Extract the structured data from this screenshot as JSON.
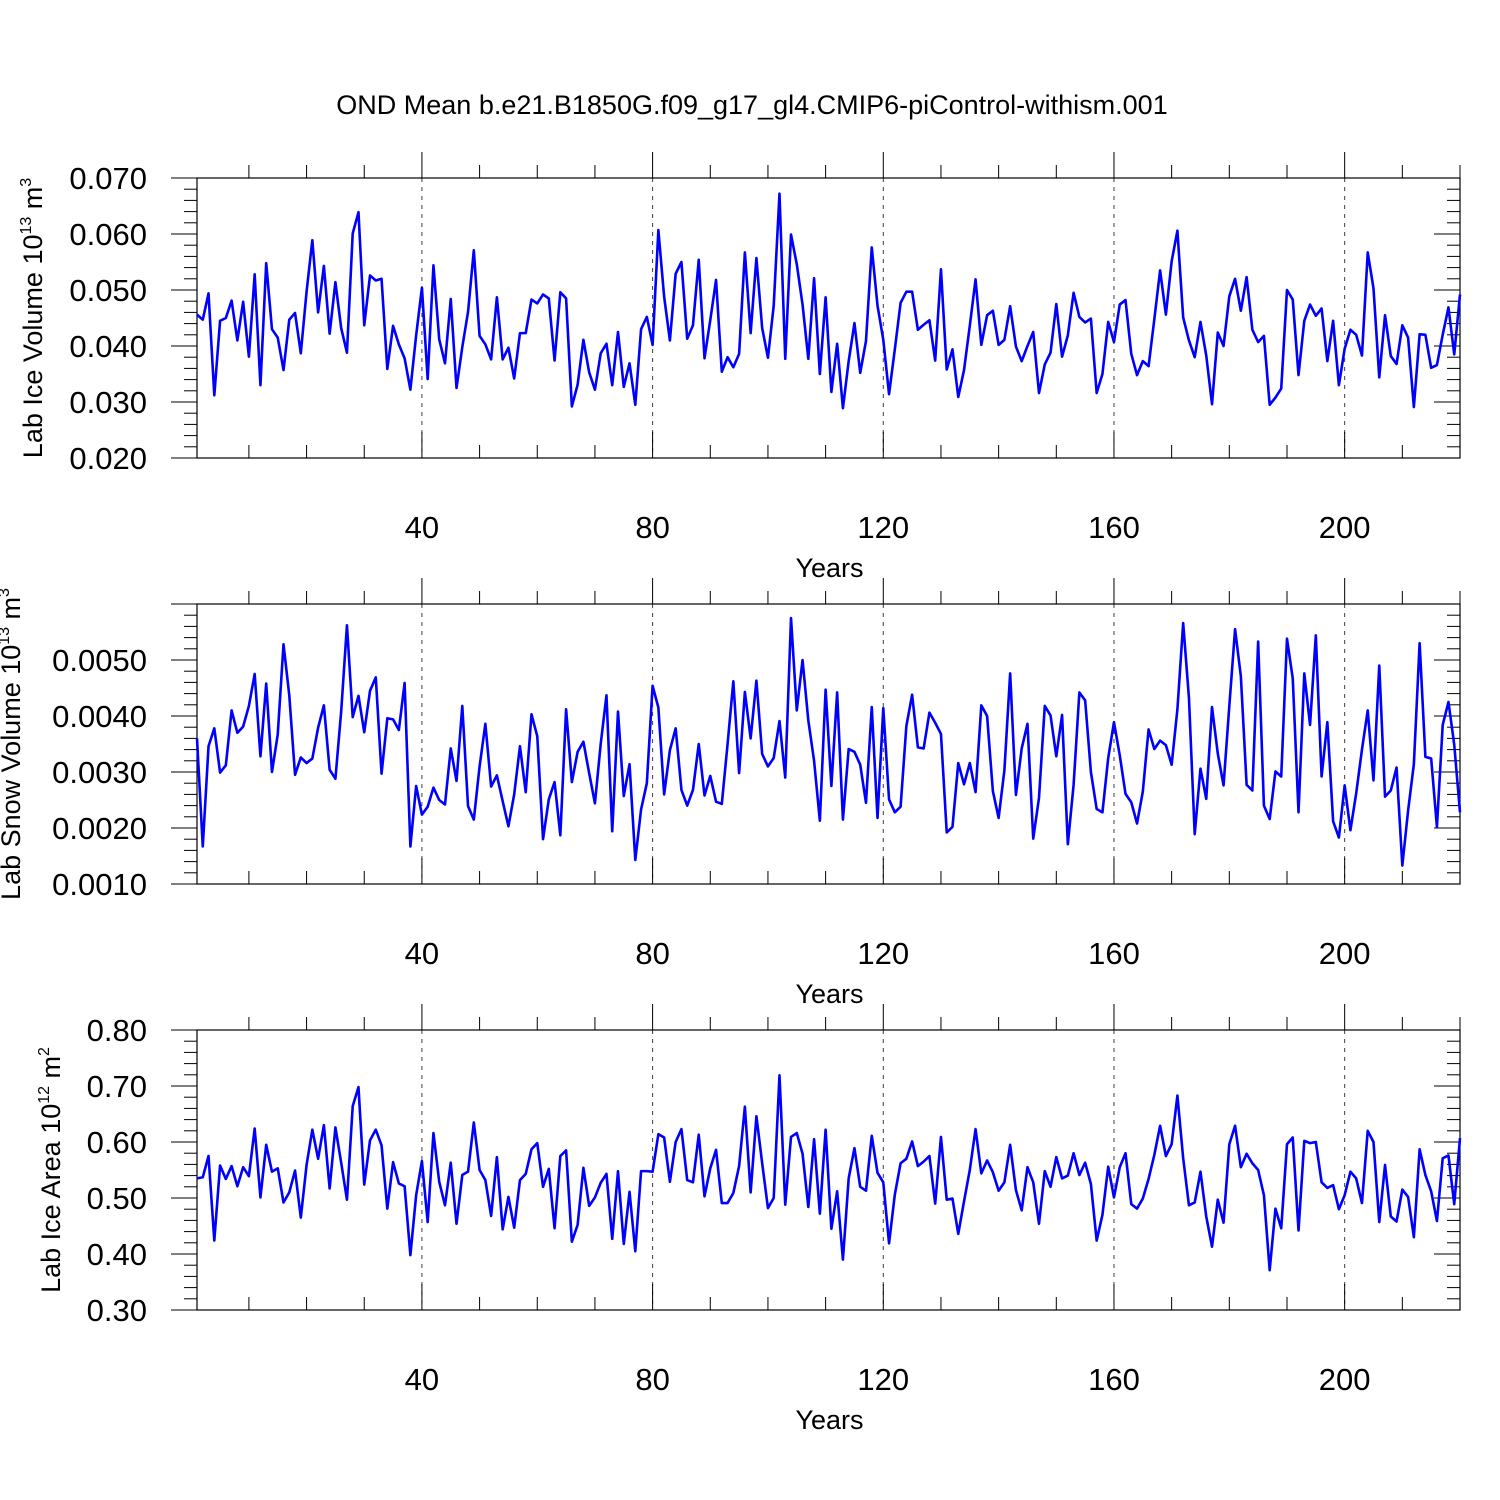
{
  "title": "OND Mean b.e21.B1850G.f09_g17_gl4.CMIP6-piControl-withism.001",
  "colors": {
    "series": "#0000ff",
    "axes": "#000000"
  },
  "chart_data": [
    {
      "type": "line",
      "id": "ice-volume",
      "ylabel": {
        "text": "Lab Ice Volume 10",
        "sup1": "13",
        "mid": " m",
        "sup2": "3"
      },
      "xlabel": "Years",
      "xlim": [
        1,
        220
      ],
      "ylim": [
        0.02,
        0.07
      ],
      "xticks": [
        40,
        80,
        120,
        160,
        200
      ],
      "xtick_labels": [
        "40",
        "80",
        "120",
        "160",
        "200"
      ],
      "yticks": [
        0.02,
        0.03,
        0.04,
        0.05,
        0.06,
        0.07
      ],
      "ytick_labels": [
        "0.020",
        "0.030",
        "0.040",
        "0.050",
        "0.060",
        "0.070"
      ],
      "grid": "x-dashed",
      "series": [
        {
          "values": [
            0.0456,
            0.0447,
            0.0494,
            0.0312,
            0.0445,
            0.045,
            0.0481,
            0.041,
            0.0479,
            0.0381,
            0.0528,
            0.033,
            0.0548,
            0.043,
            0.0415,
            0.0357,
            0.0447,
            0.0459,
            0.0387,
            0.0497,
            0.0589,
            0.046,
            0.0543,
            0.0422,
            0.0514,
            0.0432,
            0.0388,
            0.0601,
            0.0639,
            0.0437,
            0.0526,
            0.0517,
            0.052,
            0.0359,
            0.0436,
            0.0403,
            0.0378,
            0.0322,
            0.0419,
            0.0504,
            0.0341,
            0.0544,
            0.0412,
            0.0369,
            0.0484,
            0.0325,
            0.0398,
            0.0461,
            0.0571,
            0.0418,
            0.0403,
            0.0376,
            0.0487,
            0.0376,
            0.0397,
            0.0342,
            0.0423,
            0.0423,
            0.0483,
            0.0476,
            0.0492,
            0.0485,
            0.0374,
            0.0496,
            0.0485,
            0.0292,
            0.0331,
            0.0411,
            0.0353,
            0.0322,
            0.0387,
            0.0404,
            0.033,
            0.0425,
            0.0327,
            0.0369,
            0.0295,
            0.043,
            0.0452,
            0.0402,
            0.0607,
            0.0488,
            0.041,
            0.0529,
            0.055,
            0.0413,
            0.0437,
            0.0554,
            0.0378,
            0.0446,
            0.0518,
            0.0354,
            0.038,
            0.0362,
            0.0386,
            0.0567,
            0.0423,
            0.0557,
            0.0432,
            0.0379,
            0.0472,
            0.0672,
            0.0377,
            0.0599,
            0.0546,
            0.0474,
            0.0377,
            0.0521,
            0.035,
            0.0487,
            0.0318,
            0.0404,
            0.0289,
            0.0373,
            0.0441,
            0.0352,
            0.0409,
            0.0576,
            0.0472,
            0.0411,
            0.0314,
            0.0394,
            0.0477,
            0.0497,
            0.0497,
            0.0429,
            0.0438,
            0.0446,
            0.0374,
            0.0537,
            0.0358,
            0.0394,
            0.0309,
            0.0357,
            0.0436,
            0.0519,
            0.0402,
            0.0455,
            0.0463,
            0.0402,
            0.0411,
            0.0471,
            0.0399,
            0.0373,
            0.04,
            0.0425,
            0.0316,
            0.0367,
            0.0388,
            0.0475,
            0.0381,
            0.0419,
            0.0495,
            0.0452,
            0.0442,
            0.0449,
            0.0316,
            0.035,
            0.0443,
            0.0407,
            0.0474,
            0.0482,
            0.0386,
            0.0348,
            0.0373,
            0.0364,
            0.0448,
            0.0535,
            0.0456,
            0.0551,
            0.0606,
            0.0451,
            0.041,
            0.038,
            0.0443,
            0.0383,
            0.0296,
            0.0424,
            0.04,
            0.0489,
            0.052,
            0.0463,
            0.0523,
            0.0429,
            0.0407,
            0.0418,
            0.0295,
            0.0308,
            0.0324,
            0.05,
            0.0483,
            0.0348,
            0.0445,
            0.0474,
            0.0454,
            0.0467,
            0.0373,
            0.0445,
            0.033,
            0.0395,
            0.0429,
            0.042,
            0.0383,
            0.0567,
            0.0503,
            0.0344,
            0.0455,
            0.0382,
            0.0368,
            0.0437,
            0.0415,
            0.0291,
            0.0421,
            0.042,
            0.0361,
            0.0366,
            0.042,
            0.0469,
            0.0385,
            0.0492
          ]
        }
      ]
    },
    {
      "type": "line",
      "id": "snow-volume",
      "ylabel": {
        "text": "Lab Snow Volume 10",
        "sup1": "13",
        "mid": " m",
        "sup2": "3"
      },
      "xlabel": "Years",
      "xlim": [
        1,
        220
      ],
      "ylim": [
        0.001,
        0.006
      ],
      "xticks": [
        40,
        80,
        120,
        160,
        200
      ],
      "xtick_labels": [
        "40",
        "80",
        "120",
        "160",
        "200"
      ],
      "yticks": [
        0.001,
        0.002,
        0.003,
        0.004,
        0.005
      ],
      "ytick_labels": [
        "0.0010",
        "0.0020",
        "0.0030",
        "0.0040",
        "0.0050"
      ],
      "grid": "x-dashed",
      "series": [
        {
          "values": [
            0.0036,
            0.00167,
            0.00346,
            0.00378,
            0.00299,
            0.00312,
            0.0041,
            0.0037,
            0.00381,
            0.00418,
            0.00475,
            0.00328,
            0.00458,
            0.003,
            0.00367,
            0.00528,
            0.00437,
            0.00295,
            0.00326,
            0.00316,
            0.00324,
            0.00379,
            0.00419,
            0.00304,
            0.00288,
            0.00408,
            0.00562,
            0.00398,
            0.00436,
            0.00371,
            0.00445,
            0.00469,
            0.00297,
            0.00396,
            0.00394,
            0.00375,
            0.00459,
            0.00167,
            0.00275,
            0.00224,
            0.00238,
            0.00272,
            0.0025,
            0.00242,
            0.00342,
            0.00284,
            0.00418,
            0.00239,
            0.00215,
            0.0031,
            0.00386,
            0.00274,
            0.00294,
            0.00248,
            0.00203,
            0.0026,
            0.00346,
            0.00264,
            0.00403,
            0.00364,
            0.0018,
            0.00251,
            0.00282,
            0.00187,
            0.00412,
            0.00282,
            0.00336,
            0.00354,
            0.00298,
            0.00244,
            0.0035,
            0.00437,
            0.00194,
            0.00408,
            0.00257,
            0.00314,
            0.00143,
            0.00233,
            0.0028,
            0.00454,
            0.00415,
            0.0026,
            0.00339,
            0.00378,
            0.00268,
            0.0024,
            0.00268,
            0.0035,
            0.00258,
            0.00293,
            0.00247,
            0.00243,
            0.0035,
            0.00462,
            0.00298,
            0.00443,
            0.0036,
            0.00463,
            0.00332,
            0.0031,
            0.00325,
            0.00391,
            0.0029,
            0.00575,
            0.0041,
            0.005,
            0.00392,
            0.0032,
            0.00213,
            0.00447,
            0.00275,
            0.00442,
            0.00215,
            0.00341,
            0.00336,
            0.00313,
            0.00245,
            0.00416,
            0.00218,
            0.00414,
            0.00251,
            0.00228,
            0.00238,
            0.00382,
            0.00438,
            0.00344,
            0.00342,
            0.00406,
            0.00388,
            0.00368,
            0.00192,
            0.00202,
            0.00316,
            0.00278,
            0.00316,
            0.00264,
            0.00419,
            0.004,
            0.00266,
            0.00218,
            0.00303,
            0.00476,
            0.00259,
            0.00342,
            0.00386,
            0.00181,
            0.00254,
            0.00418,
            0.00401,
            0.00328,
            0.00402,
            0.00171,
            0.00277,
            0.00442,
            0.00428,
            0.003,
            0.00234,
            0.00228,
            0.00325,
            0.00389,
            0.0033,
            0.00261,
            0.00246,
            0.00208,
            0.00265,
            0.00376,
            0.00341,
            0.00356,
            0.00348,
            0.00313,
            0.00412,
            0.00566,
            0.00432,
            0.00189,
            0.00306,
            0.00252,
            0.00416,
            0.00333,
            0.00276,
            0.00418,
            0.00555,
            0.00471,
            0.00277,
            0.00267,
            0.00533,
            0.0024,
            0.00216,
            0.00301,
            0.00292,
            0.00538,
            0.00467,
            0.00228,
            0.00476,
            0.00384,
            0.00544,
            0.00292,
            0.00389,
            0.00212,
            0.00183,
            0.00276,
            0.00196,
            0.00262,
            0.0034,
            0.0041,
            0.00285,
            0.0049,
            0.00256,
            0.00267,
            0.00308,
            0.00133,
            0.00231,
            0.00314,
            0.0053,
            0.00327,
            0.00324,
            0.00202,
            0.00384,
            0.00425,
            0.00349,
            0.00228
          ]
        }
      ]
    },
    {
      "type": "line",
      "id": "ice-area",
      "ylabel": {
        "text": "Lab Ice Area 10",
        "sup1": "12",
        "mid": " m",
        "sup2": "2"
      },
      "xlabel": "Years",
      "xlim": [
        1,
        220
      ],
      "ylim": [
        0.3,
        0.8
      ],
      "xticks": [
        40,
        80,
        120,
        160,
        200
      ],
      "xtick_labels": [
        "40",
        "80",
        "120",
        "160",
        "200"
      ],
      "yticks": [
        0.3,
        0.4,
        0.5,
        0.6,
        0.7,
        0.8
      ],
      "ytick_labels": [
        "0.30",
        "0.40",
        "0.50",
        "0.60",
        "0.70",
        "0.80"
      ],
      "grid": "x-dashed",
      "series": [
        {
          "values": [
            0.535,
            0.537,
            0.575,
            0.424,
            0.558,
            0.534,
            0.557,
            0.521,
            0.555,
            0.539,
            0.624,
            0.501,
            0.595,
            0.547,
            0.553,
            0.492,
            0.51,
            0.549,
            0.465,
            0.559,
            0.622,
            0.57,
            0.63,
            0.517,
            0.626,
            0.563,
            0.497,
            0.664,
            0.698,
            0.524,
            0.603,
            0.622,
            0.594,
            0.481,
            0.564,
            0.526,
            0.521,
            0.398,
            0.505,
            0.566,
            0.457,
            0.616,
            0.529,
            0.487,
            0.563,
            0.454,
            0.541,
            0.547,
            0.635,
            0.55,
            0.532,
            0.468,
            0.573,
            0.444,
            0.502,
            0.447,
            0.532,
            0.543,
            0.587,
            0.598,
            0.52,
            0.552,
            0.446,
            0.575,
            0.585,
            0.422,
            0.452,
            0.554,
            0.486,
            0.501,
            0.527,
            0.543,
            0.427,
            0.548,
            0.418,
            0.511,
            0.405,
            0.548,
            0.548,
            0.547,
            0.614,
            0.608,
            0.529,
            0.6,
            0.623,
            0.532,
            0.528,
            0.613,
            0.503,
            0.553,
            0.586,
            0.491,
            0.491,
            0.509,
            0.557,
            0.663,
            0.51,
            0.646,
            0.562,
            0.482,
            0.5,
            0.719,
            0.488,
            0.609,
            0.616,
            0.579,
            0.484,
            0.605,
            0.472,
            0.622,
            0.445,
            0.512,
            0.39,
            0.535,
            0.589,
            0.52,
            0.513,
            0.611,
            0.545,
            0.528,
            0.419,
            0.506,
            0.562,
            0.57,
            0.601,
            0.557,
            0.565,
            0.575,
            0.49,
            0.609,
            0.497,
            0.499,
            0.436,
            0.494,
            0.55,
            0.623,
            0.544,
            0.567,
            0.546,
            0.513,
            0.528,
            0.595,
            0.514,
            0.478,
            0.555,
            0.528,
            0.454,
            0.548,
            0.52,
            0.573,
            0.535,
            0.54,
            0.58,
            0.541,
            0.563,
            0.525,
            0.424,
            0.47,
            0.556,
            0.501,
            0.555,
            0.58,
            0.489,
            0.481,
            0.499,
            0.534,
            0.577,
            0.629,
            0.575,
            0.596,
            0.683,
            0.571,
            0.487,
            0.492,
            0.547,
            0.467,
            0.413,
            0.497,
            0.456,
            0.596,
            0.629,
            0.555,
            0.579,
            0.562,
            0.55,
            0.505,
            0.371,
            0.481,
            0.446,
            0.596,
            0.608,
            0.442,
            0.602,
            0.598,
            0.6,
            0.528,
            0.518,
            0.523,
            0.48,
            0.505,
            0.547,
            0.535,
            0.491,
            0.62,
            0.6,
            0.457,
            0.559,
            0.467,
            0.458,
            0.515,
            0.502,
            0.43,
            0.587,
            0.541,
            0.512,
            0.459,
            0.571,
            0.576,
            0.489,
            0.607
          ]
        }
      ]
    }
  ]
}
